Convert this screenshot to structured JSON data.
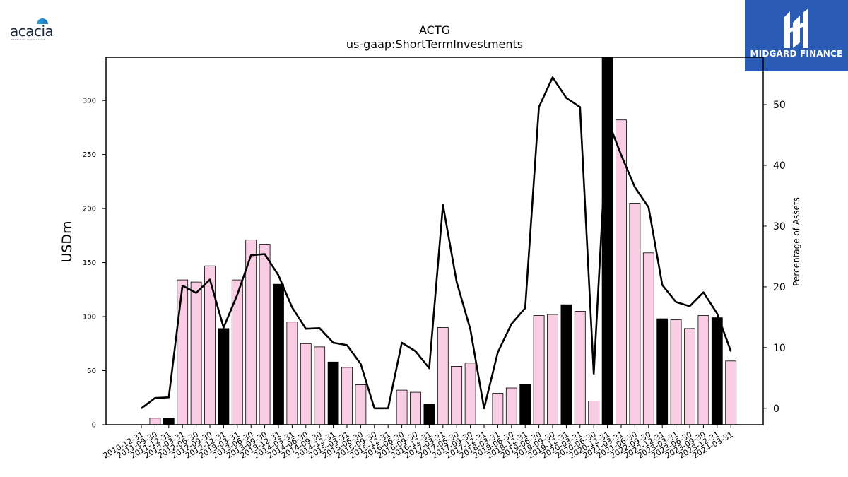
{
  "branding": {
    "left_logo_text": "acacia",
    "left_logo_tagline": "RESEARCH CORPORATION",
    "right_logo_text": "MIDGARD FINANCE",
    "right_logo_color": "#2a5bb5"
  },
  "chart_data": {
    "type": "bar",
    "title": "ACTG",
    "subtitle": "us-gaap:ShortTermInvestments",
    "ylabel": "USDm",
    "y2label": "Percentage of Assets",
    "ylim": [
      0,
      340
    ],
    "y2lim": [
      -2.7,
      57.8
    ],
    "yticks": [
      0,
      50,
      100,
      150,
      200,
      250,
      300
    ],
    "y2ticks": [
      0,
      10,
      20,
      30,
      40,
      50
    ],
    "grid": false,
    "bar_colors": {
      "quarter": "#f9cde3",
      "year_end": "#000000"
    },
    "line_color": "#000000",
    "categories": [
      "2010-12-31",
      "2011-09-30",
      "2011-12-31",
      "2012-03-31",
      "2012-06-30",
      "2012-09-30",
      "2012-12-31",
      "2013-03-31",
      "2013-06-30",
      "2013-09-30",
      "2013-12-31",
      "2014-03-31",
      "2014-06-30",
      "2014-09-30",
      "2014-12-31",
      "2015-03-31",
      "2015-06-30",
      "2015-09-30",
      "2015-12-31",
      "2016-06-30",
      "2016-09-30",
      "2016-12-31",
      "2017-03-31",
      "2017-06-30",
      "2017-09-30",
      "2017-12-31",
      "2018-03-31",
      "2018-06-30",
      "2018-12-31",
      "2019-06-30",
      "2019-09-30",
      "2019-12-31",
      "2020-03-31",
      "2020-06-30",
      "2020-12-31",
      "2021-03-31",
      "2021-06-30",
      "2022-09-30",
      "2022-12-31",
      "2023-03-31",
      "2023-06-30",
      "2023-09-30",
      "2023-12-31",
      "2024-03-31"
    ],
    "series": [
      {
        "values": [
          0,
          6,
          6,
          134,
          132,
          147,
          89,
          134,
          171,
          167,
          130,
          95,
          75,
          72,
          58,
          53,
          37,
          0,
          0,
          32,
          30,
          19,
          90,
          54,
          57,
          0,
          29,
          34,
          37,
          101,
          102,
          111,
          105,
          22,
          340,
          282,
          205,
          159,
          98,
          97,
          89,
          101,
          99,
          59
        ],
        "year_end": [
          false,
          false,
          true,
          false,
          false,
          false,
          true,
          false,
          false,
          false,
          true,
          false,
          false,
          false,
          true,
          false,
          false,
          false,
          false,
          false,
          false,
          true,
          false,
          false,
          false,
          false,
          false,
          false,
          true,
          false,
          false,
          true,
          false,
          false,
          true,
          false,
          false,
          false,
          true,
          false,
          false,
          false,
          true,
          false
        ]
      },
      {
        "axis": "right",
        "values": [
          0,
          1.7,
          1.8,
          20.2,
          19.0,
          21.2,
          13.3,
          18.7,
          25.2,
          25.4,
          21.9,
          16.6,
          13.1,
          13.2,
          10.8,
          10.4,
          7.3,
          0,
          0,
          10.8,
          9.4,
          6.6,
          33.5,
          20.8,
          13.0,
          0,
          9.2,
          13.9,
          16.5,
          49.6,
          54.5,
          51.1,
          49.6,
          5.7,
          47.6,
          41.7,
          36.4,
          33.1,
          20.3,
          17.5,
          16.8,
          19.1,
          15.6,
          9.4
        ]
      }
    ]
  }
}
